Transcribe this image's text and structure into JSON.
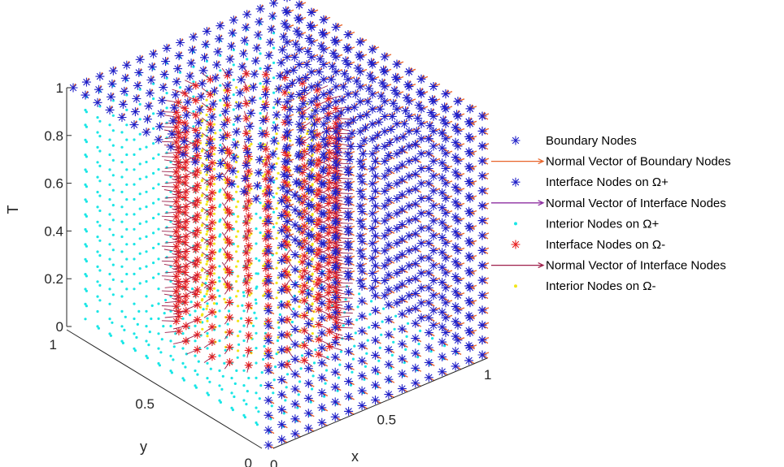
{
  "chart_data": {
    "type": "scatter3d",
    "title": "",
    "xlabel": "x",
    "ylabel": "y",
    "zlabel": "T",
    "xlim": [
      0,
      1
    ],
    "ylim": [
      0,
      1
    ],
    "zlim": [
      0,
      1
    ],
    "x_ticks": [
      "0",
      "0.5",
      "1"
    ],
    "y_ticks": [
      "0",
      "0.5",
      "1"
    ],
    "z_ticks": [
      "0",
      "0.2",
      "0.4",
      "0.6",
      "0.8",
      "1"
    ],
    "grid": "off",
    "legend_position": "right",
    "legend": [
      {
        "label": "Boundary Nodes",
        "marker": "star",
        "color": "#1f1fc8"
      },
      {
        "label": "Normal Vector of Boundary Nodes",
        "marker": "arrow",
        "color": "#e8642a"
      },
      {
        "label": "Interface Nodes on Ω+",
        "marker": "star",
        "color": "#1f1fc8"
      },
      {
        "label": "Normal Vector of Interface Nodes",
        "marker": "arrow",
        "color": "#8e2fa0"
      },
      {
        "label": "Interior Nodes on Ω+",
        "marker": "dot",
        "color": "#19e6e6"
      },
      {
        "label": "Interface Nodes on Ω-",
        "marker": "star",
        "color": "#e81f1f"
      },
      {
        "label": "Normal Vector of Interface Nodes",
        "marker": "arrow",
        "color": "#9e1f4a"
      },
      {
        "label": "Interior Nodes on Ω-",
        "marker": "dot",
        "color": "#f2e61a"
      }
    ],
    "grid_spacing": 0.0625
  }
}
